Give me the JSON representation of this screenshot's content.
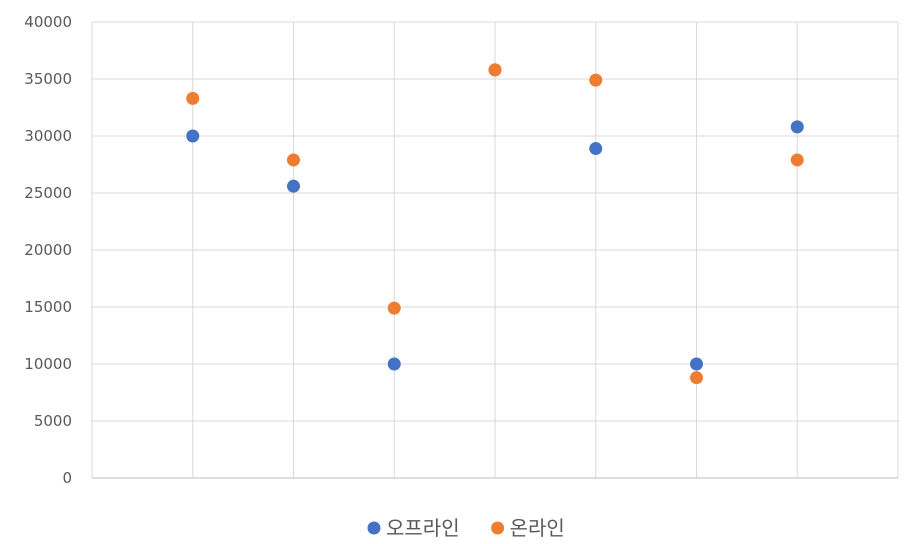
{
  "chart_data": {
    "type": "scatter",
    "title": "",
    "xlabel": "",
    "ylabel": "",
    "x": [
      1,
      2,
      3,
      4,
      5,
      6,
      7
    ],
    "xlim": [
      0,
      8
    ],
    "ylim": [
      0,
      40000
    ],
    "yticks": [
      "0",
      "5000",
      "10000",
      "15000",
      "20000",
      "25000",
      "30000",
      "35000",
      "40000"
    ],
    "grid": true,
    "legend_position": "bottom",
    "series": [
      {
        "name": "오프라인",
        "color": "#4472C4",
        "values": [
          30000,
          25600,
          10000,
          35800,
          28900,
          10000,
          30800
        ]
      },
      {
        "name": "온라인",
        "color": "#ED7D31",
        "values": [
          33300,
          27900,
          14900,
          35800,
          34900,
          8800,
          27900
        ]
      }
    ]
  }
}
